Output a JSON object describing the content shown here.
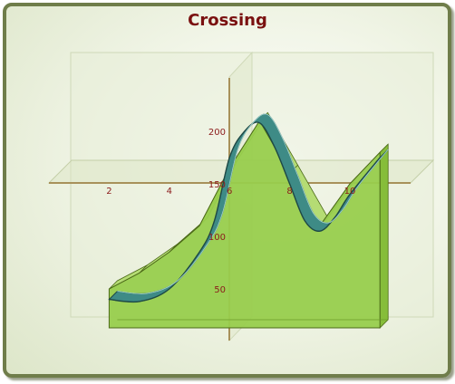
{
  "title": "Crossing",
  "chart_data": {
    "type": "area",
    "title": "Crossing",
    "xlabel": "",
    "ylabel": "",
    "xlim": [
      0,
      12
    ],
    "ylim": [
      0,
      240
    ],
    "x_ticks": [
      2,
      4,
      6,
      8,
      10
    ],
    "y_ticks": [
      50,
      100,
      150,
      200
    ],
    "grid": false,
    "legend": "none",
    "three_d": true,
    "series": [
      {
        "type": "area",
        "color": "#94cc48",
        "x": [
          2,
          3,
          4,
          5,
          6,
          7,
          8,
          9,
          10,
          11
        ],
        "y": [
          50,
          65,
          85,
          110,
          165,
          210,
          160,
          110,
          150,
          180
        ]
      },
      {
        "type": "line",
        "color": "#3c8a84",
        "x": [
          2,
          3,
          4,
          5,
          5.5,
          6,
          6.5,
          7,
          7.5,
          8,
          8.5,
          9,
          9.5,
          10,
          11
        ],
        "y": [
          40,
          38,
          50,
          85,
          115,
          175,
          200,
          208,
          185,
          150,
          115,
          105,
          118,
          140,
          175
        ]
      }
    ]
  }
}
